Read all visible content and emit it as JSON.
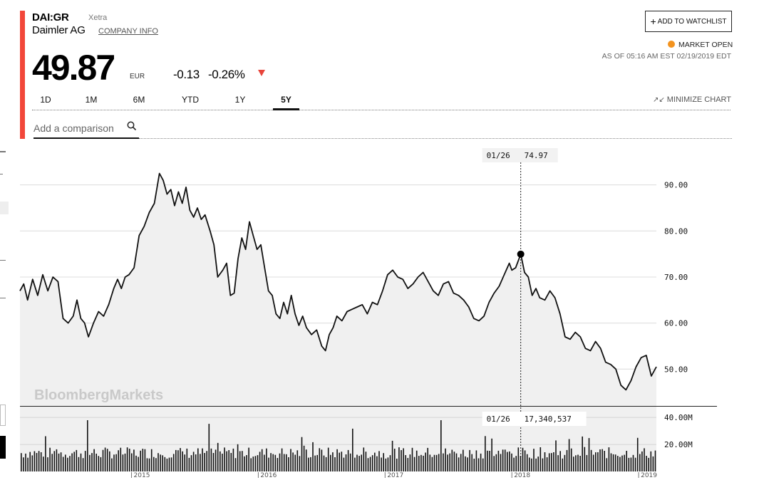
{
  "quote": {
    "ticker": "DAI:GR",
    "exchange": "Xetra",
    "company": "Daimler AG",
    "company_info_label": "COMPANY INFO",
    "price": "49.87",
    "currency": "EUR",
    "change": "-0.13",
    "change_pct": "-0.26%",
    "watchlist_label": "ADD TO WATCHLIST",
    "market_status": "MARKET OPEN",
    "as_of": "AS OF 05:16 AM EST 02/19/2019 EDT",
    "status_color": "#f3931e",
    "down_color": "#e8443a",
    "accent_color": "#f2473a"
  },
  "tabs": [
    {
      "label": "1D",
      "active": false
    },
    {
      "label": "1M",
      "active": false
    },
    {
      "label": "6M",
      "active": false
    },
    {
      "label": "YTD",
      "active": false
    },
    {
      "label": "1Y",
      "active": false
    },
    {
      "label": "5Y",
      "active": true
    }
  ],
  "minimize_label": "MINIMIZE CHART",
  "comparison": {
    "placeholder": "Add a comparison"
  },
  "chart_data": {
    "type": "area",
    "watermark": "BloombergMarkets",
    "price_axis": {
      "ticks": [
        "90.00",
        "80.00",
        "70.00",
        "60.00",
        "50.00"
      ],
      "range": [
        42,
        100
      ]
    },
    "volume_axis": {
      "ticks": [
        "40.00M",
        "20.00M"
      ],
      "range": [
        0,
        48000000
      ]
    },
    "x_ticks": [
      "2015",
      "2016",
      "2017",
      "2018",
      "2019"
    ],
    "x_range": [
      2014.12,
      2019.14
    ],
    "crosshair": {
      "date_label": "01/26",
      "price_label": "74.97",
      "volume_label": "17,340,537",
      "x": 2018.07,
      "price": 74.97
    },
    "price_series": [
      [
        2014.12,
        67.0
      ],
      [
        2014.15,
        68.5
      ],
      [
        2014.18,
        65.0
      ],
      [
        2014.22,
        69.5
      ],
      [
        2014.26,
        66.0
      ],
      [
        2014.3,
        70.5
      ],
      [
        2014.34,
        67.0
      ],
      [
        2014.38,
        70.0
      ],
      [
        2014.42,
        69.0
      ],
      [
        2014.46,
        61.0
      ],
      [
        2014.5,
        60.0
      ],
      [
        2014.54,
        61.5
      ],
      [
        2014.57,
        65.0
      ],
      [
        2014.6,
        61.0
      ],
      [
        2014.63,
        60.0
      ],
      [
        2014.66,
        57.0
      ],
      [
        2014.7,
        60.0
      ],
      [
        2014.74,
        62.5
      ],
      [
        2014.78,
        61.5
      ],
      [
        2014.82,
        64.0
      ],
      [
        2014.86,
        67.5
      ],
      [
        2014.89,
        69.5
      ],
      [
        2014.92,
        67.5
      ],
      [
        2014.95,
        70.0
      ],
      [
        2014.98,
        70.5
      ],
      [
        2015.02,
        72.0
      ],
      [
        2015.06,
        79.0
      ],
      [
        2015.1,
        81.0
      ],
      [
        2015.14,
        84.0
      ],
      [
        2015.18,
        86.0
      ],
      [
        2015.22,
        92.5
      ],
      [
        2015.25,
        91.0
      ],
      [
        2015.28,
        88.0
      ],
      [
        2015.31,
        89.0
      ],
      [
        2015.34,
        85.5
      ],
      [
        2015.37,
        88.5
      ],
      [
        2015.4,
        86.0
      ],
      [
        2015.43,
        89.5
      ],
      [
        2015.46,
        84.5
      ],
      [
        2015.49,
        83.0
      ],
      [
        2015.52,
        85.0
      ],
      [
        2015.55,
        82.5
      ],
      [
        2015.58,
        83.5
      ],
      [
        2015.62,
        80.0
      ],
      [
        2015.65,
        77.0
      ],
      [
        2015.68,
        70.0
      ],
      [
        2015.72,
        71.5
      ],
      [
        2015.75,
        73.0
      ],
      [
        2015.78,
        66.0
      ],
      [
        2015.81,
        66.5
      ],
      [
        2015.84,
        74.0
      ],
      [
        2015.87,
        78.5
      ],
      [
        2015.9,
        76.0
      ],
      [
        2015.93,
        82.0
      ],
      [
        2015.96,
        79.0
      ],
      [
        2015.99,
        76.0
      ],
      [
        2016.02,
        77.0
      ],
      [
        2016.05,
        72.0
      ],
      [
        2016.08,
        67.0
      ],
      [
        2016.11,
        66.0
      ],
      [
        2016.14,
        62.0
      ],
      [
        2016.17,
        61.0
      ],
      [
        2016.2,
        64.5
      ],
      [
        2016.23,
        62.0
      ],
      [
        2016.26,
        66.0
      ],
      [
        2016.29,
        62.0
      ],
      [
        2016.32,
        59.5
      ],
      [
        2016.35,
        61.5
      ],
      [
        2016.38,
        59.0
      ],
      [
        2016.42,
        57.5
      ],
      [
        2016.46,
        58.5
      ],
      [
        2016.5,
        55.0
      ],
      [
        2016.53,
        54.0
      ],
      [
        2016.56,
        57.5
      ],
      [
        2016.59,
        59.0
      ],
      [
        2016.62,
        61.5
      ],
      [
        2016.66,
        60.5
      ],
      [
        2016.7,
        62.5
      ],
      [
        2016.74,
        63.0
      ],
      [
        2016.78,
        63.5
      ],
      [
        2016.82,
        64.0
      ],
      [
        2016.86,
        62.0
      ],
      [
        2016.9,
        64.5
      ],
      [
        2016.94,
        64.0
      ],
      [
        2016.98,
        67.0
      ],
      [
        2017.02,
        70.5
      ],
      [
        2017.06,
        71.5
      ],
      [
        2017.1,
        70.0
      ],
      [
        2017.14,
        69.5
      ],
      [
        2017.18,
        67.5
      ],
      [
        2017.22,
        68.5
      ],
      [
        2017.26,
        70.0
      ],
      [
        2017.3,
        71.0
      ],
      [
        2017.34,
        69.0
      ],
      [
        2017.38,
        67.0
      ],
      [
        2017.42,
        66.0
      ],
      [
        2017.46,
        68.5
      ],
      [
        2017.5,
        69.0
      ],
      [
        2017.54,
        66.5
      ],
      [
        2017.58,
        66.0
      ],
      [
        2017.62,
        65.0
      ],
      [
        2017.66,
        63.5
      ],
      [
        2017.7,
        61.0
      ],
      [
        2017.74,
        60.5
      ],
      [
        2017.78,
        61.5
      ],
      [
        2017.82,
        64.5
      ],
      [
        2017.86,
        66.5
      ],
      [
        2017.9,
        68.0
      ],
      [
        2017.94,
        70.5
      ],
      [
        2017.98,
        73.0
      ],
      [
        2018.0,
        71.5
      ],
      [
        2018.03,
        72.0
      ],
      [
        2018.07,
        74.97
      ],
      [
        2018.1,
        71.0
      ],
      [
        2018.13,
        70.0
      ],
      [
        2018.16,
        66.0
      ],
      [
        2018.19,
        67.5
      ],
      [
        2018.22,
        65.5
      ],
      [
        2018.26,
        65.0
      ],
      [
        2018.3,
        67.0
      ],
      [
        2018.34,
        65.5
      ],
      [
        2018.38,
        62.0
      ],
      [
        2018.42,
        57.0
      ],
      [
        2018.46,
        56.5
      ],
      [
        2018.5,
        58.0
      ],
      [
        2018.54,
        57.0
      ],
      [
        2018.58,
        54.5
      ],
      [
        2018.62,
        54.0
      ],
      [
        2018.66,
        56.0
      ],
      [
        2018.7,
        54.5
      ],
      [
        2018.74,
        51.5
      ],
      [
        2018.78,
        51.0
      ],
      [
        2018.82,
        50.0
      ],
      [
        2018.86,
        46.5
      ],
      [
        2018.9,
        45.5
      ],
      [
        2018.94,
        47.5
      ],
      [
        2018.98,
        50.5
      ],
      [
        2019.02,
        52.5
      ],
      [
        2019.06,
        53.0
      ],
      [
        2019.1,
        48.5
      ],
      [
        2019.14,
        50.5
      ]
    ]
  }
}
